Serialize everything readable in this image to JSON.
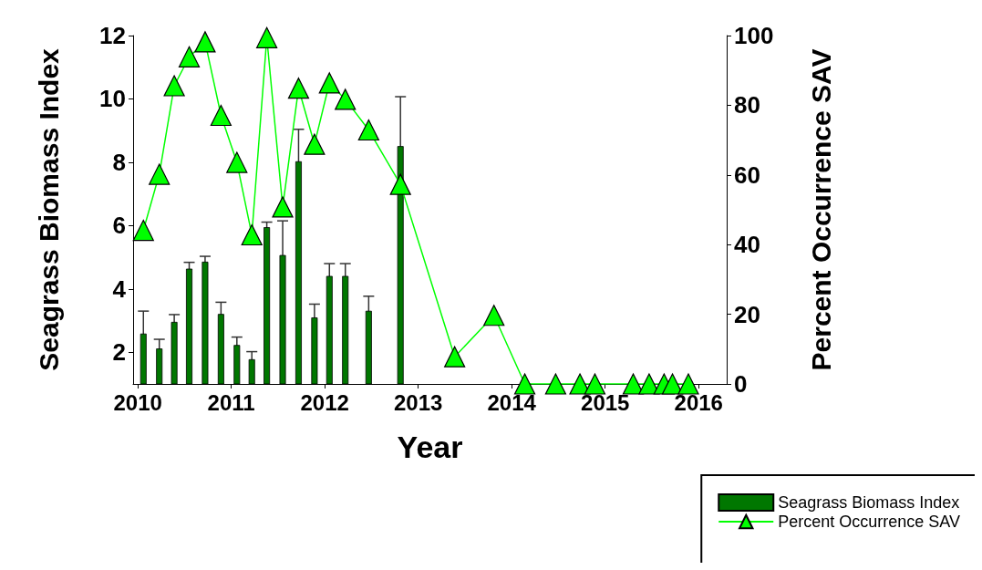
{
  "chart_data": {
    "type": "bar",
    "xlabel": "Year",
    "ylabel": "Seagrass Biomass Index",
    "y2label": "Percent Occurrence SAV",
    "xlim": [
      2009.95,
      2016.3
    ],
    "xticks": [
      2010,
      2011,
      2012,
      2013,
      2014,
      2015,
      2016
    ],
    "ylim": [
      1,
      12
    ],
    "yticks": [
      2,
      4,
      6,
      8,
      10,
      12
    ],
    "y2lim": [
      0,
      100
    ],
    "y2ticks": [
      0,
      20,
      40,
      60,
      80,
      100
    ],
    "grid": false,
    "legend": "bottom right",
    "series": [
      {
        "name": "Seagrass Biomass Index",
        "color": "#007700",
        "x": [
          2010.06,
          2010.23,
          2010.39,
          2010.55,
          2010.72,
          2010.89,
          2011.06,
          2011.22,
          2011.38,
          2011.55,
          2011.72,
          2011.89,
          2012.05,
          2012.22,
          2012.47,
          2012.81
        ],
        "values": [
          2.59,
          2.12,
          2.96,
          4.64,
          4.86,
          3.21,
          2.23,
          1.78,
          5.95,
          5.07,
          8.03,
          3.1,
          4.41,
          4.41,
          3.31,
          8.51
        ],
        "errors": [
          0.71,
          0.29,
          0.23,
          0.2,
          0.17,
          0.37,
          0.25,
          0.24,
          0.16,
          1.08,
          1.01,
          0.42,
          0.39,
          0.39,
          0.46,
          1.56
        ]
      },
      {
        "name": "Percent Occurrence SAV",
        "type": "line",
        "axis": "y2",
        "color": "#00ff00",
        "marker": "triangle",
        "line_style": "solid",
        "x": [
          2010.06,
          2010.23,
          2010.39,
          2010.55,
          2010.72,
          2010.89,
          2011.06,
          2011.22,
          2011.38,
          2011.55,
          2011.72,
          2011.89,
          2012.05,
          2012.22,
          2012.47,
          2012.81,
          2013.39,
          2013.81,
          2014.14,
          2014.47,
          2014.73,
          2014.89,
          2015.3,
          2015.47,
          2015.63,
          2015.72,
          2015.89
        ],
        "values": [
          44.1,
          60.2,
          85.6,
          93.9,
          98.2,
          77.1,
          63.6,
          42.8,
          99.4,
          50.8,
          84.9,
          68.8,
          86.4,
          81.7,
          72.9,
          57.3,
          7.8,
          19.7,
          0,
          0,
          0,
          0,
          0,
          0,
          0,
          0,
          0
        ]
      }
    ]
  }
}
